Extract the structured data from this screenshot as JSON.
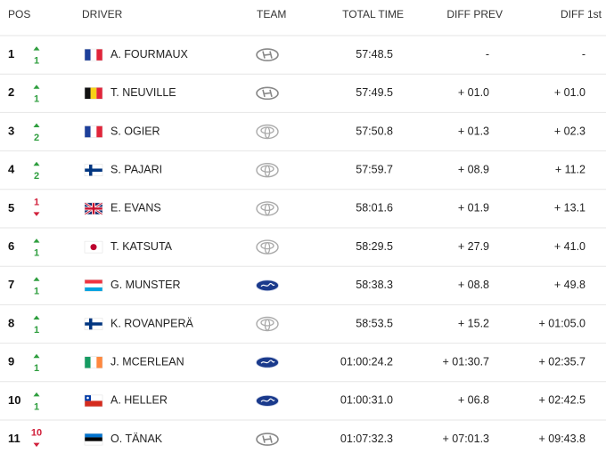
{
  "header": {
    "pos": "POS",
    "driver": "DRIVER",
    "team": "TEAM",
    "total_time": "TOTAL TIME",
    "diff_prev": "DIFF PREV",
    "diff_first": "DIFF 1st"
  },
  "rows": [
    {
      "pos": 1,
      "change": 1,
      "driver": "A. FOURMAUX",
      "total_time": "57:48.5",
      "diff_prev": "-",
      "diff_first": "-"
    },
    {
      "pos": 2,
      "change": 1,
      "driver": "T. NEUVILLE",
      "total_time": "57:49.5",
      "diff_prev": "+ 01.0",
      "diff_first": "+ 01.0"
    },
    {
      "pos": 3,
      "change": 2,
      "driver": "S. OGIER",
      "total_time": "57:50.8",
      "diff_prev": "+ 01.3",
      "diff_first": "+ 02.3"
    },
    {
      "pos": 4,
      "change": 2,
      "driver": "S. PAJARI",
      "total_time": "57:59.7",
      "diff_prev": "+ 08.9",
      "diff_first": "+ 11.2"
    },
    {
      "pos": 5,
      "change": 1,
      "driver": "E. EVANS",
      "total_time": "58:01.6",
      "diff_prev": "+ 01.9",
      "diff_first": "+ 13.1"
    },
    {
      "pos": 6,
      "change": 1,
      "driver": "T. KATSUTA",
      "total_time": "58:29.5",
      "diff_prev": "+ 27.9",
      "diff_first": "+ 41.0"
    },
    {
      "pos": 7,
      "change": 1,
      "driver": "G. MUNSTER",
      "total_time": "58:38.3",
      "diff_prev": "+ 08.8",
      "diff_first": "+ 49.8"
    },
    {
      "pos": 8,
      "change": 1,
      "driver": "K. ROVANPERÄ",
      "total_time": "58:53.5",
      "diff_prev": "+ 15.2",
      "diff_first": "+ 01:05.0"
    },
    {
      "pos": 9,
      "change": 1,
      "driver": "J. MCERLEAN",
      "total_time": "01:00:24.2",
      "diff_prev": "+ 01:30.7",
      "diff_first": "+ 02:35.7"
    },
    {
      "pos": 10,
      "change": 1,
      "driver": "A. HELLER",
      "total_time": "01:00:31.0",
      "diff_prev": "+ 06.8",
      "diff_first": "+ 02:42.5"
    },
    {
      "pos": 11,
      "change": 10,
      "driver": "O. TÄNAK",
      "total_time": "01:07:32.3",
      "diff_prev": "+ 07:01.3",
      "diff_first": "+ 09:43.8"
    }
  ]
}
